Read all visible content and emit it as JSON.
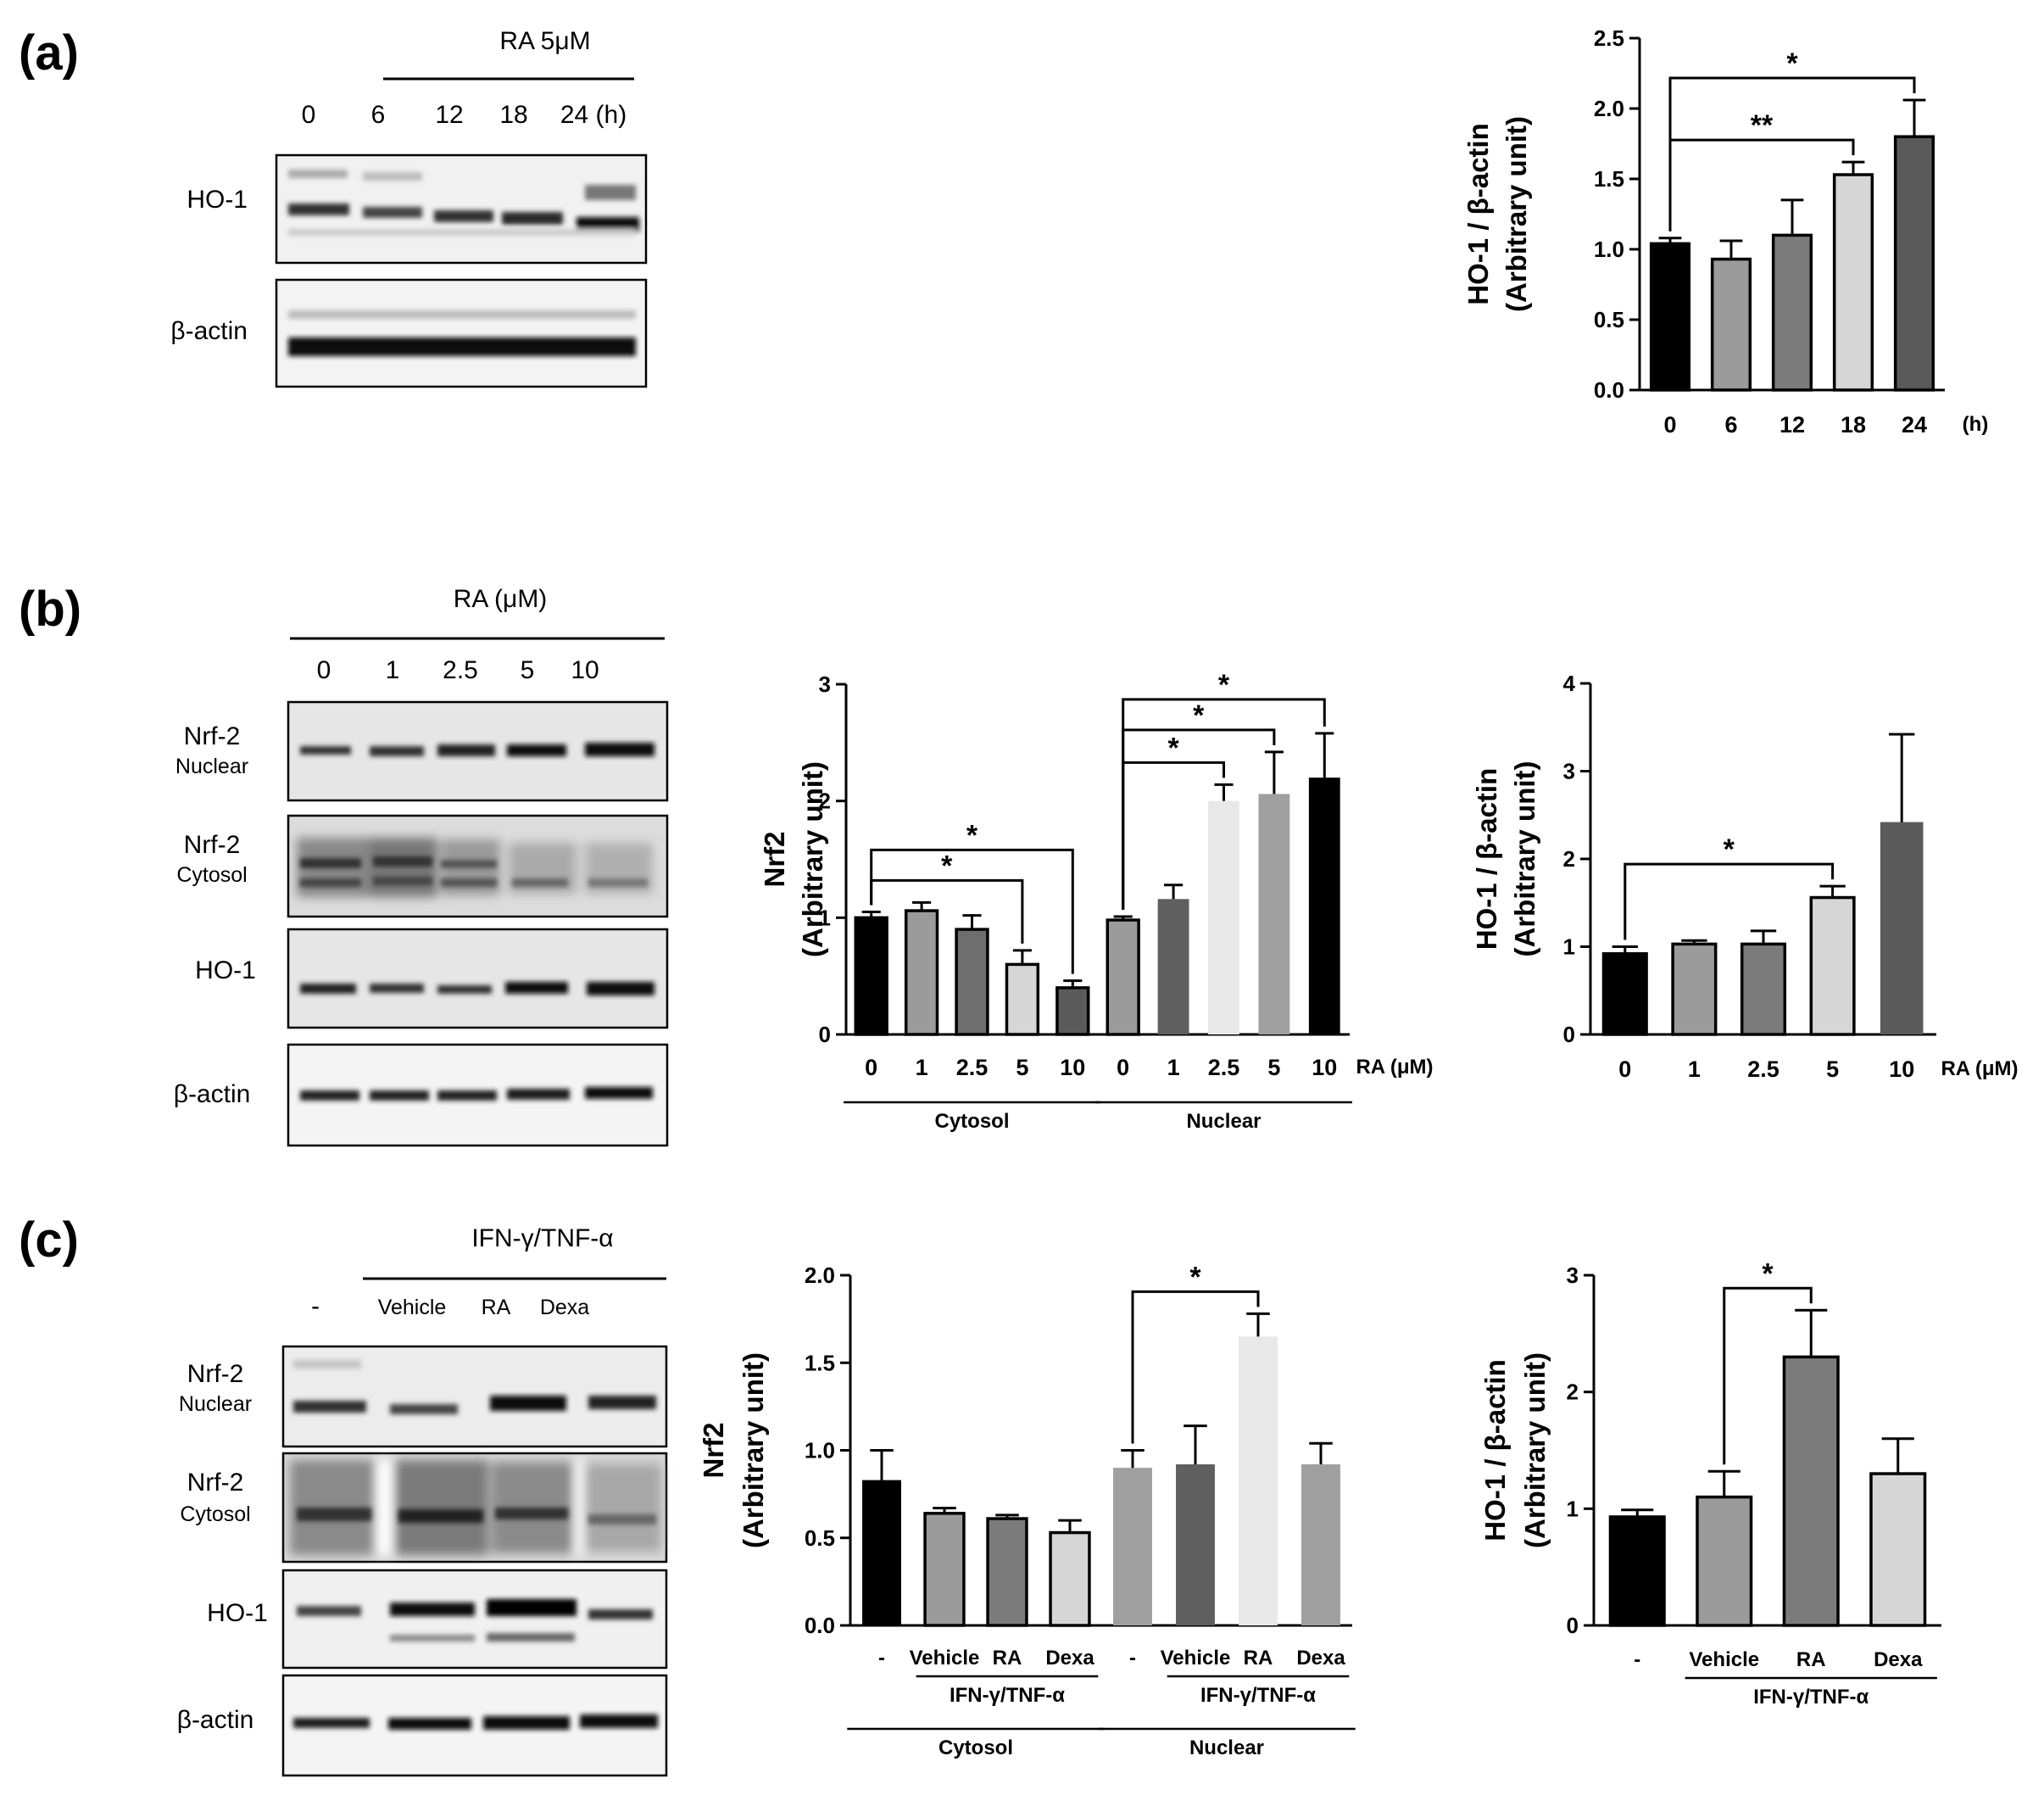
{
  "panels": {
    "a": {
      "label": "(a)",
      "blot": {
        "treatment": "RA 5μM",
        "lanes": [
          "0",
          "6",
          "12",
          "18",
          "24 (h)"
        ],
        "rows": [
          {
            "name": "HO-1",
            "sub": ""
          },
          {
            "name": "β-actin",
            "sub": ""
          }
        ]
      }
    },
    "b": {
      "label": "(b)",
      "blot": {
        "treatment": "RA (μM)",
        "lanes": [
          "0",
          "1",
          "2.5",
          "5",
          "10"
        ],
        "rows": [
          {
            "name": "Nrf-2",
            "sub": "Nuclear"
          },
          {
            "name": "Nrf-2",
            "sub": "Cytosol"
          },
          {
            "name": "HO-1",
            "sub": ""
          },
          {
            "name": "β-actin",
            "sub": ""
          }
        ]
      }
    },
    "c": {
      "label": "(c)",
      "blot": {
        "treatment": "IFN-γ/TNF-α",
        "lanes": [
          "-",
          "Vehicle",
          "RA",
          "Dexa"
        ],
        "rows": [
          {
            "name": "Nrf-2",
            "sub": "Nuclear"
          },
          {
            "name": "Nrf-2",
            "sub": "Cytosol"
          },
          {
            "name": "HO-1",
            "sub": ""
          },
          {
            "name": "β-actin",
            "sub": ""
          }
        ]
      }
    }
  },
  "chart_data": [
    {
      "id": "a-ho1",
      "panel": "a",
      "type": "bar",
      "ylabel": [
        "HO-1 / β-actin",
        "(Arbitrary unit)"
      ],
      "ylim": [
        0,
        2.5
      ],
      "yticks": [
        "0.0",
        "0.5",
        "1.0",
        "1.5",
        "2.0",
        "2.5"
      ],
      "categories": [
        "0",
        "6",
        "12",
        "18",
        "24"
      ],
      "values": [
        1.04,
        0.93,
        1.1,
        1.53,
        1.8
      ],
      "errors": [
        0.04,
        0.13,
        0.25,
        0.09,
        0.26
      ],
      "colors": [
        "#000000",
        "#9b9b9b",
        "#7b7b7b",
        "#d6d6d6",
        "#5a5a5a"
      ],
      "unit_label": "(h)",
      "significance": [
        {
          "from": 0,
          "to": 3,
          "label": "**"
        },
        {
          "from": 0,
          "to": 4,
          "label": "*"
        }
      ]
    },
    {
      "id": "b-nrf2",
      "panel": "b",
      "type": "bar",
      "ylabel": [
        "Nrf2",
        "(Arbitrary unit)"
      ],
      "ylim": [
        0,
        3
      ],
      "yticks": [
        "0",
        "1",
        "2",
        "3"
      ],
      "categories": [
        "0",
        "1",
        "2.5",
        "5",
        "10",
        "0",
        "1",
        "2.5",
        "5",
        "10"
      ],
      "values": [
        1.0,
        1.06,
        0.9,
        0.6,
        0.4,
        0.98,
        1.16,
        2.0,
        2.06,
        2.2
      ],
      "errors": [
        0.05,
        0.07,
        0.12,
        0.12,
        0.06,
        0.03,
        0.12,
        0.14,
        0.36,
        0.38
      ],
      "colors": [
        "#000000",
        "#9b9b9b",
        "#6e6e6e",
        "#d6d6d6",
        "#5a5a5a",
        "#9b9b9b",
        "#5f5f5f",
        "#e8e8e8",
        "#9f9f9f",
        "#000000"
      ],
      "borders": [
        true,
        true,
        true,
        true,
        true,
        true,
        false,
        false,
        false,
        false
      ],
      "unit_label": "RA (μM)",
      "groups": [
        {
          "name": "Cytosol",
          "from": 0,
          "to": 4
        },
        {
          "name": "Nuclear",
          "from": 5,
          "to": 9
        }
      ],
      "significance": [
        {
          "from": 0,
          "to": 3,
          "label": "*"
        },
        {
          "from": 0,
          "to": 4,
          "label": "*"
        },
        {
          "from": 5,
          "to": 7,
          "label": "*"
        },
        {
          "from": 5,
          "to": 8,
          "label": "*"
        },
        {
          "from": 5,
          "to": 9,
          "label": "*"
        }
      ]
    },
    {
      "id": "b-ho1",
      "panel": "b",
      "type": "bar",
      "ylabel": [
        "HO-1 / β-actin",
        "(Arbitrary unit)"
      ],
      "ylim": [
        0,
        4
      ],
      "yticks": [
        "0",
        "1",
        "2",
        "3",
        "4"
      ],
      "categories": [
        "0",
        "1",
        "2.5",
        "5",
        "10"
      ],
      "values": [
        0.92,
        1.03,
        1.03,
        1.56,
        2.42
      ],
      "errors": [
        0.08,
        0.04,
        0.15,
        0.13,
        1.0
      ],
      "colors": [
        "#000000",
        "#9b9b9b",
        "#7b7b7b",
        "#d6d6d6",
        "#5a5a5a"
      ],
      "borders": [
        true,
        true,
        true,
        true,
        false
      ],
      "unit_label": "RA (μM)",
      "significance": [
        {
          "from": 0,
          "to": 3,
          "label": "*"
        }
      ]
    },
    {
      "id": "c-nrf2",
      "panel": "c",
      "type": "bar",
      "ylabel": [
        "Nrf2",
        "(Arbitrary unit)"
      ],
      "ylim": [
        0,
        2.0
      ],
      "yticks": [
        "0.0",
        "0.5",
        "1.0",
        "1.5",
        "2.0"
      ],
      "categories": [
        "-",
        "Vehicle",
        "RA",
        "Dexa",
        "-",
        "Vehicle",
        "RA",
        "Dexa"
      ],
      "values": [
        0.83,
        0.64,
        0.61,
        0.53,
        0.9,
        0.92,
        1.65,
        0.92
      ],
      "errors": [
        0.17,
        0.03,
        0.02,
        0.07,
        0.1,
        0.22,
        0.13,
        0.12
      ],
      "colors": [
        "#000000",
        "#9b9b9b",
        "#7b7b7b",
        "#d6d6d6",
        "#9f9f9f",
        "#5f5f5f",
        "#e8e8e8",
        "#9f9f9f"
      ],
      "borders": [
        false,
        true,
        true,
        true,
        false,
        false,
        false,
        false
      ],
      "treatment_groups": [
        {
          "name": "IFN-γ/TNF-α",
          "from": 1,
          "to": 3
        },
        {
          "name": "IFN-γ/TNF-α",
          "from": 5,
          "to": 7
        }
      ],
      "groups": [
        {
          "name": "Cytosol",
          "from": 0,
          "to": 3
        },
        {
          "name": "Nuclear",
          "from": 4,
          "to": 7
        }
      ],
      "significance": [
        {
          "from": 4,
          "to": 6,
          "label": "*"
        }
      ]
    },
    {
      "id": "c-ho1",
      "panel": "c",
      "type": "bar",
      "ylabel": [
        "HO-1 / β-actin",
        "(Arbitrary unit)"
      ],
      "ylim": [
        0,
        3
      ],
      "yticks": [
        "0",
        "1",
        "2",
        "3"
      ],
      "categories": [
        "-",
        "Vehicle",
        "RA",
        "Dexa"
      ],
      "values": [
        0.93,
        1.1,
        2.3,
        1.3
      ],
      "errors": [
        0.06,
        0.22,
        0.4,
        0.3
      ],
      "colors": [
        "#000000",
        "#9b9b9b",
        "#7b7b7b",
        "#d6d6d6"
      ],
      "borders": [
        true,
        true,
        true,
        true
      ],
      "treatment_groups": [
        {
          "name": "IFN-γ/TNF-α",
          "from": 1,
          "to": 3
        }
      ],
      "significance": [
        {
          "from": 1,
          "to": 2,
          "label": "*"
        }
      ]
    }
  ]
}
